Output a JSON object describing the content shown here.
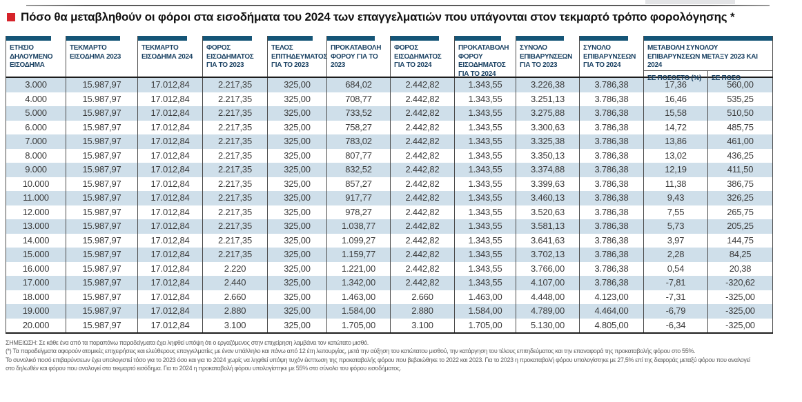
{
  "title": {
    "text": "Πόσο θα μεταβληθούν οι φόροι στα εισοδήματα του 2024 των επαγγελματιών που υπάγονται στον τεκμαρτό τρόπο φορολόγησης *"
  },
  "header": {
    "columns": [
      "ΕΤΗΣΙΟ ΔΗΛΟΥΜΕΝΟ ΕΙΣΟΔΗΜΑ",
      "ΤΕΚΜΑΡΤΟ ΕΙΣΟΔΗΜΑ 2023",
      "ΤΕΚΜΑΡΤΟ ΕΙΣΟΔΗΜΑ 2024",
      "ΦΟΡΟΣ ΕΙΣΟΔΗΜΑΤΟΣ ΓΙΑ ΤΟ 2023",
      "ΤΕΛΟΣ ΕΠΙΤΗΔΕΥΜΑΤΟΣ ΓΙΑ ΤΟ 2023",
      "ΠΡΟΚΑΤΑΒΟΛΗ ΦΟΡΟΥ ΓΙΑ ΤΟ 2023",
      "ΦΟΡΟΣ ΕΙΣΟΔΗΜΑΤΟΣ ΓΙΑ ΤΟ 2024",
      "ΠΡΟΚΑΤΑΒΟΛΗ ΦΟΡΟΥ ΕΙΣΟΔΗΜΑΤΟΣ ΓΙΑ ΤΟ 2024",
      "ΣΥΝΟΛΟ ΕΠΙΒΑΡΥΝΣΕΩΝ ΓΙΑ ΤΟ 2023",
      "ΣΥΝΟΛΟ ΕΠΙΒΑΡΥΝΣΕΩΝ ΓΙΑ ΤΟ 2024"
    ],
    "change_group": {
      "label": "ΜΕΤΑΒΟΛΗ ΣΥΝΟΛΟΥ ΕΠΙΒΑΡΥΝΣΕΩΝ ΜΕΤΑΞΥ 2023 ΚΑΙ 2024",
      "sub_percent": "ΣΕ ΠΟΣΟΣΤΟ (%)",
      "sub_amount": "ΣΕ ΠΟΣΟ"
    }
  },
  "chart_data": {
    "type": "table",
    "title": "Πόσο θα μεταβληθούν οι φόροι στα εισοδήματα του 2024 των επαγγελματιών που υπάγονται στον τεκμαρτό τρόπο φορολόγησης *",
    "columns": [
      "ΕΤΗΣΙΟ ΔΗΛΟΥΜΕΝΟ ΕΙΣΟΔΗΜΑ",
      "ΤΕΚΜΑΡΤΟ ΕΙΣΟΔΗΜΑ 2023",
      "ΤΕΚΜΑΡΤΟ ΕΙΣΟΔΗΜΑ 2024",
      "ΦΟΡΟΣ ΕΙΣΟΔΗΜΑΤΟΣ ΓΙΑ ΤΟ 2023",
      "ΤΕΛΟΣ ΕΠΙΤΗΔΕΥΜΑΤΟΣ ΓΙΑ ΤΟ 2023",
      "ΠΡΟΚΑΤΑΒΟΛΗ ΦΟΡΟΥ ΓΙΑ ΤΟ 2023",
      "ΦΟΡΟΣ ΕΙΣΟΔΗΜΑΤΟΣ ΓΙΑ ΤΟ 2024",
      "ΠΡΟΚΑΤΑΒΟΛΗ ΦΟΡΟΥ ΕΙΣΟΔΗΜΑΤΟΣ ΓΙΑ ΤΟ 2024",
      "ΣΥΝΟΛΟ ΕΠΙΒΑΡΥΝΣΕΩΝ ΓΙΑ ΤΟ 2023",
      "ΣΥΝΟΛΟ ΕΠΙΒΑΡΥΝΣΕΩΝ ΓΙΑ ΤΟ 2024",
      "ΜΕΤΑΒΟΛΗ ΣΥΝΟΛΟΥ ΕΠΙΒΑΡΥΝΣΕΩΝ ΜΕΤΑΞΥ 2023 ΚΑΙ 2024 - ΣΕ ΠΟΣΟΣΤΟ (%)",
      "ΜΕΤΑΒΟΛΗ ΣΥΝΟΛΟΥ ΕΠΙΒΑΡΥΝΣΕΩΝ ΜΕΤΑΞΥ 2023 ΚΑΙ 2024 - ΣΕ ΠΟΣΟ"
    ],
    "rows": [
      [
        "3.000",
        "15.987,97",
        "17.012,84",
        "2.217,35",
        "325,00",
        "684,02",
        "2.442,82",
        "1.343,55",
        "3.226,38",
        "3.786,38",
        "17,36",
        "560,00"
      ],
      [
        "4.000",
        "15.987,97",
        "17.012,84",
        "2.217,35",
        "325,00",
        "708,77",
        "2.442,82",
        "1.343,55",
        "3.251,13",
        "3.786,38",
        "16,46",
        "535,25"
      ],
      [
        "5.000",
        "15.987,97",
        "17.012,84",
        "2.217,35",
        "325,00",
        "733,52",
        "2.442,82",
        "1.343,55",
        "3.275,88",
        "3.786,38",
        "15,58",
        "510,50"
      ],
      [
        "6.000",
        "15.987,97",
        "17.012,84",
        "2.217,35",
        "325,00",
        "758,27",
        "2.442,82",
        "1.343,55",
        "3.300,63",
        "3.786,38",
        "14,72",
        "485,75"
      ],
      [
        "7.000",
        "15.987,97",
        "17.012,84",
        "2.217,35",
        "325,00",
        "783,02",
        "2.442,82",
        "1.343,55",
        "3.325,38",
        "3.786,38",
        "13,86",
        "461,00"
      ],
      [
        "8.000",
        "15.987,97",
        "17.012,84",
        "2.217,35",
        "325,00",
        "807,77",
        "2.442,82",
        "1.343,55",
        "3.350,13",
        "3.786,38",
        "13,02",
        "436,25"
      ],
      [
        "9.000",
        "15.987,97",
        "17.012,84",
        "2.217,35",
        "325,00",
        "832,52",
        "2.442,82",
        "1.343,55",
        "3.374,88",
        "3.786,38",
        "12,19",
        "411,50"
      ],
      [
        "10.000",
        "15.987,97",
        "17.012,84",
        "2.217,35",
        "325,00",
        "857,27",
        "2.442,82",
        "1.343,55",
        "3.399,63",
        "3.786,38",
        "11,38",
        "386,75"
      ],
      [
        "11.000",
        "15.987,97",
        "17.012,84",
        "2.217,35",
        "325,00",
        "917,77",
        "2.442,82",
        "1.343,55",
        "3.460,13",
        "3.786,38",
        "9,43",
        "326,25"
      ],
      [
        "12.000",
        "15.987,97",
        "17.012,84",
        "2.217,35",
        "325,00",
        "978,27",
        "2.442,82",
        "1.343,55",
        "3.520,63",
        "3.786,38",
        "7,55",
        "265,75"
      ],
      [
        "13.000",
        "15.987,97",
        "17.012,84",
        "2.217,35",
        "325,00",
        "1.038,77",
        "2.442,82",
        "1.343,55",
        "3.581,13",
        "3.786,38",
        "5,73",
        "205,25"
      ],
      [
        "14.000",
        "15.987,97",
        "17.012,84",
        "2.217,35",
        "325,00",
        "1.099,27",
        "2.442,82",
        "1.343,55",
        "3.641,63",
        "3.786,38",
        "3,97",
        "144,75"
      ],
      [
        "15.000",
        "15.987,97",
        "17.012,84",
        "2.217,35",
        "325,00",
        "1.159,77",
        "2.442,82",
        "1.343,55",
        "3.702,13",
        "3.786,38",
        "2,28",
        "84,25"
      ],
      [
        "16.000",
        "15.987,97",
        "17.012,84",
        "2.220",
        "325,00",
        "1.221,00",
        "2.442,82",
        "1.343,55",
        "3.766,00",
        "3.786,38",
        "0,54",
        "20,38"
      ],
      [
        "17.000",
        "15.987,97",
        "17.012,84",
        "2.440",
        "325,00",
        "1.342,00",
        "2.442,82",
        "1.343,55",
        "4.107,00",
        "3.786,38",
        "-7,81",
        "-320,62"
      ],
      [
        "18.000",
        "15.987,97",
        "17.012,84",
        "2.660",
        "325,00",
        "1.463,00",
        "2.660",
        "1.463,00",
        "4.448,00",
        "4.123,00",
        "-7,31",
        "-325,00"
      ],
      [
        "19.000",
        "15.987,97",
        "17.012,84",
        "2.880",
        "325,00",
        "1.584,00",
        "2.880",
        "1.584,00",
        "4.789,00",
        "4.464,00",
        "-6,79",
        "-325,00"
      ],
      [
        "20.000",
        "15.987,97",
        "17.012,84",
        "3.100",
        "325,00",
        "1.705,00",
        "3.100",
        "1.705,00",
        "5.130,00",
        "4.805,00",
        "-6,34",
        "-325,00"
      ]
    ]
  },
  "footnotes": [
    "ΣΗΜΕΙΩΣΗ: Σε κάθε ένα από τα παραπάνω παραδείγματα έχει ληφθεί υπόψη ότι ο εργαζόμενος στην επιχείρηση λαμβάνει τον κατώτατο μισθό.",
    "(*) Τα παραδείγματα αφορούν ατομικές επιχειρήσεις και ελεύθερους επαγγελματίες με έναν υπάλληλο και πάνω από 12 έτη λειτουργίας, μετά την αύξηση του κατώτατου μισθού, την κατάργηση του τέλους επιτηδεύματος και την επαναφορά της προκαταβολής φόρου στο 55%.",
    "Το συνολικό ποσό επιβαρύνσεων έχει υπολογιστεί τόσο για το 2023 όσο και για το 2024 χωρίς να ληφθεί υπόψη τυχόν έκπτωση της προκαταβολής φόρου που βεβαιώθηκε το 2022 και 2023. Για το 2023 η προκαταβολή φόρου υπολογίστηκε με 27,5% επί της διαφοράς μεταξύ φόρου που αναλογεί",
    "στο δηλωθέν και φόρου που αναλογεί στο τεκμαρτό εισόδημα. Για το 2024 η προκαταβολή φόρου υπολογίστηκε με 55% στο σύνολο του φόρου εισοδήματος."
  ],
  "colors": {
    "accent_red": "#d6232a",
    "header_bar_blue": "#155577",
    "header_text_navy": "#1b4263",
    "row_shade_blue": "#cfdfea",
    "rule_dark": "#1c1c1c"
  }
}
